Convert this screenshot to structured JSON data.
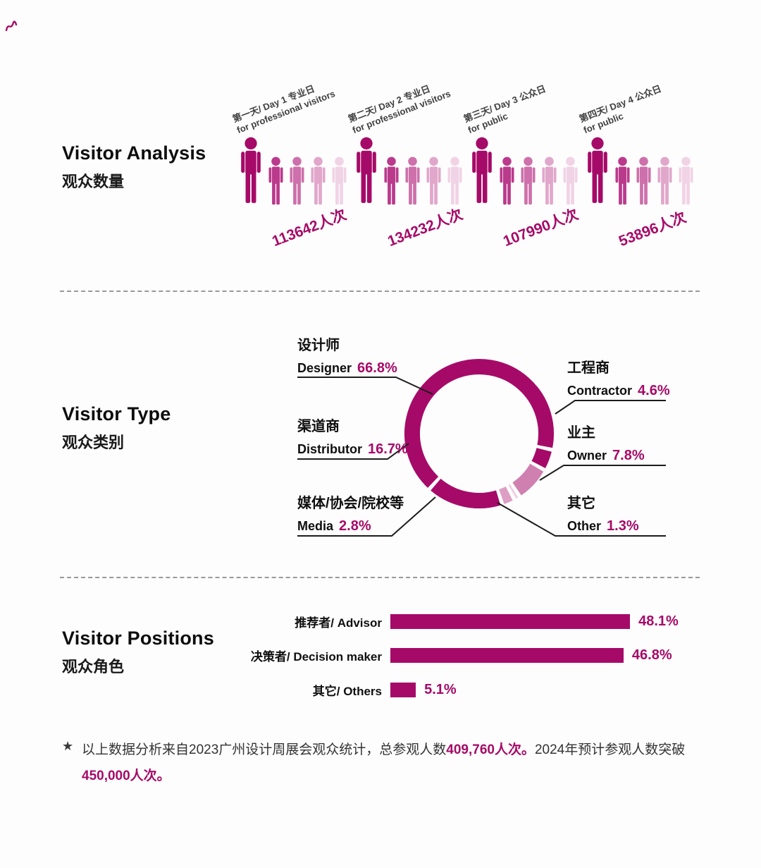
{
  "page": {
    "background": "#fdfdfd",
    "accent": "#a60a68"
  },
  "sections": {
    "analysis": {
      "title_en": "Visitor Analysis",
      "title_zh": "观众数量",
      "icon_shades": [
        "#a60a68",
        "#ba3a8c",
        "#cd70ab",
        "#e1a7cb",
        "#f1d3e6"
      ],
      "groups": [
        {
          "label_line1": "第一天/ Day 1 专业日",
          "label_line2": "for professional visitors",
          "count": "113642人次"
        },
        {
          "label_line1": "第二天/ Day 2 专业日",
          "label_line2": "for professional visitors",
          "count": "134232人次"
        },
        {
          "label_line1": "第三天/ Day 3 公众日",
          "label_line2": "for public",
          "count": "107990人次"
        },
        {
          "label_line1": "第四天/ Day 4 公众日",
          "label_line2": "for public",
          "count": "53896人次"
        }
      ]
    },
    "type": {
      "title_en": "Visitor Type",
      "title_zh": "观众类别",
      "items": [
        {
          "zh": "设计师",
          "en": "Designer",
          "pct": "66.8%"
        },
        {
          "zh": "渠道商",
          "en": "Distributor",
          "pct": "16.7%"
        },
        {
          "zh": "媒体/协会/院校等",
          "en": "Media",
          "pct": "2.8%"
        },
        {
          "zh": "工程商",
          "en": "Contractor",
          "pct": "4.6%"
        },
        {
          "zh": "业主",
          "en": "Owner",
          "pct": "7.8%"
        },
        {
          "zh": "其它",
          "en": "Other",
          "pct": "1.3%"
        }
      ],
      "segments": [
        {
          "name": "Designer",
          "pct": 66.8,
          "color": "#a60a68"
        },
        {
          "name": "Contractor",
          "pct": 4.6,
          "color": "#a60a68"
        },
        {
          "name": "Owner",
          "pct": 7.8,
          "color": "#cf7fb0"
        },
        {
          "name": "Other",
          "pct": 1.3,
          "color": "#efccdf"
        },
        {
          "name": "Media",
          "pct": 2.8,
          "color": "#dd9ec4"
        },
        {
          "name": "Distributor",
          "pct": 16.7,
          "color": "#a60a68"
        }
      ]
    },
    "positions": {
      "title_en": "Visitor Positions",
      "title_zh": "观众角色",
      "rows": [
        {
          "label": "推荐者/ Advisor",
          "value": 48.1,
          "pct": "48.1%"
        },
        {
          "label": "决策者/ Decision maker",
          "value": 46.8,
          "pct": "46.8%"
        },
        {
          "label": "其它/ Others",
          "value": 5.1,
          "pct": "5.1%"
        }
      ]
    }
  },
  "footnote": {
    "star": "★",
    "t1": "以上数据分析来自2023广州设计周展会观众统计，总参观人数",
    "b1": "409,760人次。",
    "t2": "2024年预计参观人数突破",
    "b2": "450,000人次。"
  },
  "chart_data": [
    {
      "type": "bar",
      "title": "Visitor Analysis 观众数量",
      "categories": [
        "第一天/ Day 1 专业日 for professional visitors",
        "第二天/ Day 2 专业日 for professional visitors",
        "第三天/ Day 3 公众日 for public",
        "第四天/ Day 4 公众日 for public"
      ],
      "values": [
        113642,
        134232,
        107990,
        53896
      ],
      "unit": "人次",
      "style": "pictogram-people"
    },
    {
      "type": "pie",
      "subtype": "donut",
      "title": "Visitor Type 观众类别",
      "categories": [
        "设计师 Designer",
        "工程商 Contractor",
        "业主 Owner",
        "其它 Other",
        "媒体/协会/院校等 Media",
        "渠道商 Distributor"
      ],
      "values": [
        66.8,
        4.6,
        7.8,
        1.3,
        2.8,
        16.7
      ],
      "unit": "%",
      "legend_position": "around-chart"
    },
    {
      "type": "bar",
      "orientation": "horizontal",
      "title": "Visitor Positions 观众角色",
      "categories": [
        "推荐者/ Advisor",
        "决策者/ Decision maker",
        "其它/ Others"
      ],
      "values": [
        48.1,
        46.8,
        5.1
      ],
      "unit": "%",
      "xlim": [
        0,
        50
      ]
    }
  ]
}
